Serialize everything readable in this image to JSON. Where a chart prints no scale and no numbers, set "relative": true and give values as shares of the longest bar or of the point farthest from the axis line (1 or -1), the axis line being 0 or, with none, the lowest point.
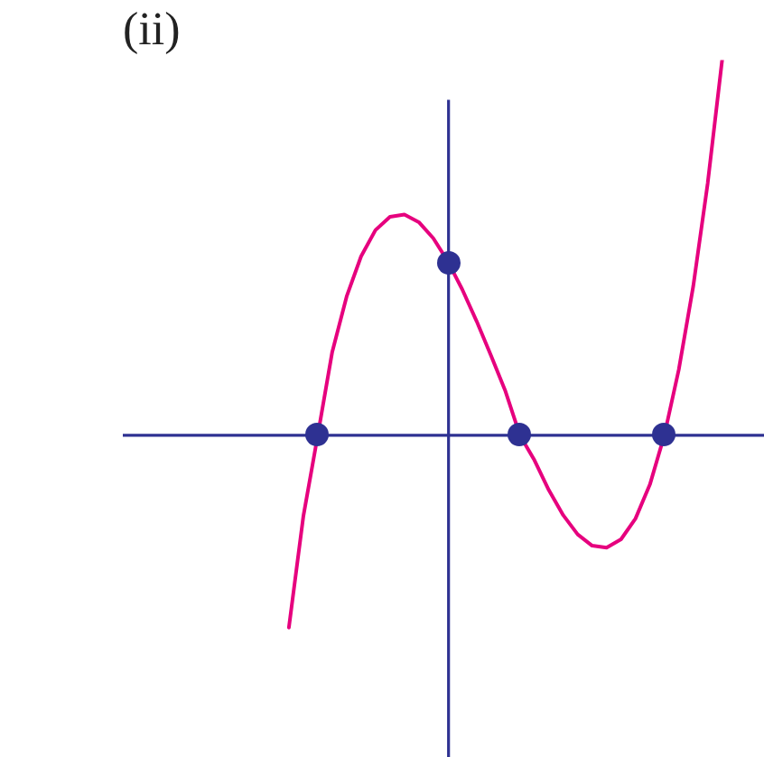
{
  "chart_data": {
    "type": "line",
    "title": "(ii)",
    "relative": true,
    "legend": false,
    "ref_lines": [
      {
        "axis": "y",
        "value": 0,
        "color": "#2e3192"
      }
    ],
    "categories": [
      null,
      null,
      null,
      null,
      null,
      null,
      null,
      null,
      null,
      null,
      null,
      null,
      null,
      null,
      null,
      null,
      null,
      null,
      null,
      null,
      null,
      null,
      null,
      null,
      null,
      null,
      null,
      null,
      null,
      null,
      null
    ],
    "series": [
      {
        "color": "#e6007e",
        "values": [
          -0.512,
          -0.216,
          0,
          0.222,
          0.37,
          0.477,
          0.547,
          0.582,
          0.588,
          0.568,
          0.525,
          0.464,
          0.389,
          0.304,
          0.212,
          0.117,
          0,
          -0.066,
          -0.146,
          -0.213,
          -0.264,
          -0.294,
          -0.299,
          -0.277,
          -0.222,
          -0.131,
          0,
          0.175,
          0.397,
          0.671,
          1
        ]
      }
    ]
  }
}
